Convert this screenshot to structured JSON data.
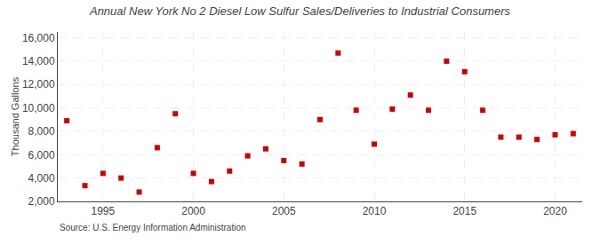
{
  "chart_data": {
    "type": "scatter",
    "title": "Annual New York No 2 Diesel Low Sulfur Sales/Deliveries to Industrial Consumers",
    "y_label": "Thousand Gallons",
    "annotations": [
      "Source: U.S. Energy Information Administration"
    ],
    "x": [
      1993,
      1994,
      1995,
      1996,
      1997,
      1998,
      1999,
      2000,
      2001,
      2002,
      2003,
      2004,
      2005,
      2006,
      2007,
      2008,
      2009,
      2010,
      2011,
      2012,
      2013,
      2014,
      2015,
      2016,
      2017,
      2018,
      2019,
      2020,
      2021
    ],
    "values": [
      8900,
      3350,
      4400,
      4000,
      2800,
      6600,
      9500,
      4400,
      3700,
      4600,
      5900,
      6500,
      5500,
      5200,
      9000,
      14700,
      9800,
      6900,
      9900,
      11100,
      9800,
      14000,
      13100,
      9800,
      7500,
      7500,
      7300,
      7700,
      7800
    ],
    "color": "#cc0000",
    "marker": "square",
    "xlim": [
      1992.5,
      2021.5
    ],
    "xticks": [
      1995,
      2000,
      2005,
      2010,
      2015,
      2020
    ],
    "ylim": [
      2000,
      16500
    ],
    "yticks": [
      {
        "value": 2000,
        "label": "2,000"
      },
      {
        "value": 4000,
        "label": "4,000"
      },
      {
        "value": 6000,
        "label": "6,000"
      },
      {
        "value": 8000,
        "label": "8,000"
      },
      {
        "value": 10000,
        "label": "10,000"
      },
      {
        "value": 12000,
        "label": "12,000"
      },
      {
        "value": 14000,
        "label": "14,000"
      },
      {
        "value": 16000,
        "label": "16,000"
      }
    ],
    "grid": true
  }
}
